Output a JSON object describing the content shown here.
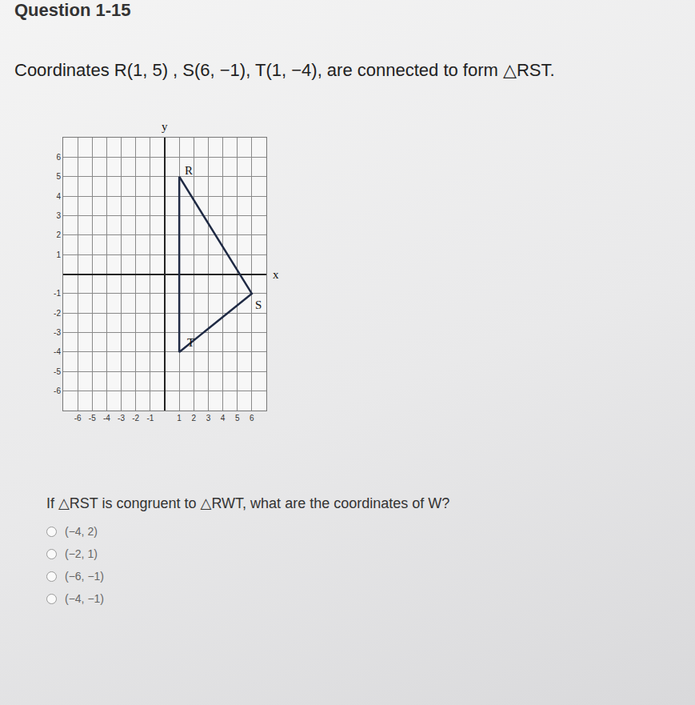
{
  "header": "Question 1-15",
  "prompt": "Coordinates R(1, 5) , S(6, −1), T(1, −4), are connected to form △RST.",
  "chart_data": {
    "type": "line",
    "x": [
      1,
      6,
      1,
      1
    ],
    "values": [
      5,
      -1,
      -4,
      5
    ],
    "color": "#1f2a44",
    "xlabel": "x",
    "ylabel": "y",
    "annotations": [
      {
        "x": 1,
        "y": 5,
        "text": "R"
      },
      {
        "x": 6,
        "y": -1,
        "text": "S"
      },
      {
        "x": 1,
        "y": -4,
        "text": "T"
      }
    ],
    "xlim": [
      -7,
      7
    ],
    "ylim": [
      -7,
      7
    ],
    "xticks": [
      -6,
      -5,
      -4,
      -3,
      -2,
      -1,
      1,
      2,
      3,
      4,
      5,
      6
    ],
    "yticks": [
      -6,
      -5,
      -4,
      -3,
      -2,
      -1,
      1,
      2,
      3,
      4,
      5,
      6
    ],
    "grid": true
  },
  "question": "If △RST is congruent to △RWT, what are the coordinates of W?",
  "choices": [
    "(−4, 2)",
    "(−2, 1)",
    "(−6, −1)",
    "(−4, −1)"
  ]
}
